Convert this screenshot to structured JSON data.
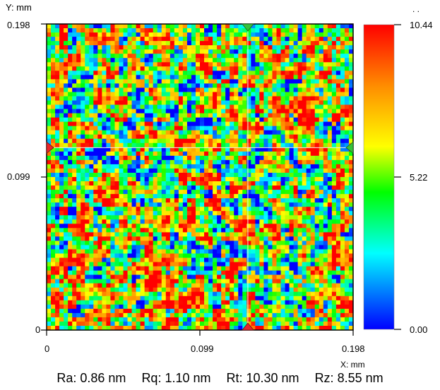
{
  "chart_data": {
    "type": "heatmap",
    "title": "",
    "xlabel": "X: mm",
    "ylabel": "Y: mm",
    "x_ticks": [
      "0",
      "0.099",
      "0.198"
    ],
    "y_ticks": [
      "0",
      "0.099",
      "0.198"
    ],
    "xlim": [
      0,
      0.198
    ],
    "ylim": [
      0,
      0.198
    ],
    "colorbar": {
      "min": 0.0,
      "mid": 5.22,
      "max": 10.44,
      "tick_labels": [
        "10.44",
        "5.22",
        "0.00"
      ],
      "colors": [
        "#ff0000",
        "#ff8000",
        "#ffff00",
        "#00ff00",
        "#00ffff",
        "#0000ff"
      ]
    },
    "crosshair": {
      "x": 0.13,
      "y": 0.118
    },
    "value_distribution": "random rough surface texture, mostly mid-range (green/yellow) values with scattered highs (orange/red) and lows (cyan/blue)",
    "roughness": [
      {
        "label": "Ra",
        "text": "Ra: 0.86 nm"
      },
      {
        "label": "Rq",
        "text": "Rq: 1.10 nm"
      },
      {
        "label": "Rt",
        "text": "Rt: 10.30 nm"
      },
      {
        "label": "Rz",
        "text": "Rz: 8.55 nm"
      }
    ],
    "corner_marks": ". ."
  }
}
